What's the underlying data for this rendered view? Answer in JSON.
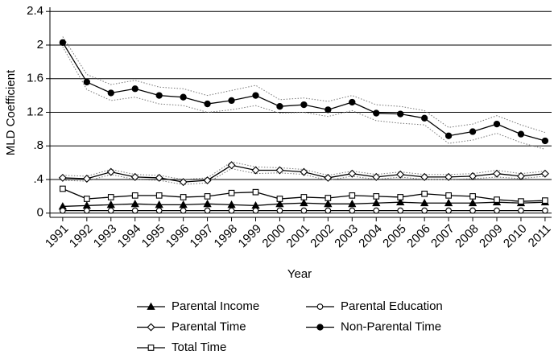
{
  "chart_data": {
    "type": "line",
    "y_label": "MLD Coefficient",
    "x_label": "Year",
    "x": [
      1991,
      1992,
      1993,
      1994,
      1995,
      1996,
      1997,
      1998,
      1999,
      2000,
      2001,
      2002,
      2003,
      2004,
      2005,
      2006,
      2007,
      2008,
      2009,
      2010,
      2011
    ],
    "xlim": [
      1990.47,
      2011.27
    ],
    "xticks": [
      1991,
      1992,
      1993,
      1994,
      1995,
      1996,
      1997,
      1998,
      1999,
      2000,
      2001,
      2002,
      2003,
      2004,
      2005,
      2006,
      2007,
      2008,
      2009,
      2010,
      2011
    ],
    "ylim": [
      -0.05,
      2.45
    ],
    "yticks": [
      0,
      {
        "value": 0.4,
        "label": ".4"
      },
      {
        "value": 0.8,
        "label": ".8"
      },
      1.2,
      1.6,
      2,
      2.4
    ],
    "grid": true,
    "legend": "bottom",
    "series": [
      {
        "name": "Parental Income",
        "color": "#000000",
        "marker": "triangle",
        "values": [
          0.08,
          0.09,
          0.1,
          0.11,
          0.1,
          0.1,
          0.11,
          0.1,
          0.09,
          0.11,
          0.12,
          0.11,
          0.11,
          0.12,
          0.13,
          0.12,
          0.12,
          0.12,
          0.13,
          0.12,
          0.13
        ]
      },
      {
        "name": "Parental Education",
        "color": "#000000",
        "marker": "circle-open",
        "values": [
          0.03,
          0.03,
          0.03,
          0.03,
          0.03,
          0.03,
          0.03,
          0.03,
          0.03,
          0.03,
          0.03,
          0.03,
          0.03,
          0.03,
          0.03,
          0.03,
          0.03,
          0.03,
          0.03,
          0.03,
          0.03
        ]
      },
      {
        "name": "Parental Time",
        "color": "#000000",
        "marker": "diamond",
        "values": [
          0.42,
          0.41,
          0.49,
          0.43,
          0.42,
          0.37,
          0.39,
          0.57,
          0.51,
          0.51,
          0.49,
          0.42,
          0.47,
          0.43,
          0.46,
          0.43,
          0.43,
          0.44,
          0.47,
          0.44,
          0.47
        ],
        "upper": [
          0.45,
          0.44,
          0.52,
          0.46,
          0.45,
          0.4,
          0.42,
          0.61,
          0.55,
          0.54,
          0.52,
          0.45,
          0.5,
          0.46,
          0.49,
          0.46,
          0.46,
          0.47,
          0.51,
          0.47,
          0.5
        ],
        "lower": [
          0.39,
          0.38,
          0.46,
          0.4,
          0.39,
          0.34,
          0.36,
          0.53,
          0.47,
          0.48,
          0.46,
          0.39,
          0.44,
          0.4,
          0.43,
          0.4,
          0.4,
          0.41,
          0.43,
          0.41,
          0.44
        ]
      },
      {
        "name": "Non-Parental Time",
        "color": "#000000",
        "marker": "circle-filled",
        "values": [
          2.03,
          1.56,
          1.43,
          1.48,
          1.4,
          1.38,
          1.3,
          1.34,
          1.4,
          1.27,
          1.29,
          1.23,
          1.32,
          1.19,
          1.18,
          1.13,
          0.92,
          0.97,
          1.06,
          0.94,
          0.86
        ],
        "upper": [
          2.1,
          1.65,
          1.53,
          1.58,
          1.5,
          1.48,
          1.4,
          1.46,
          1.52,
          1.35,
          1.37,
          1.33,
          1.4,
          1.29,
          1.27,
          1.22,
          1.02,
          1.06,
          1.16,
          1.05,
          0.96
        ],
        "lower": [
          1.98,
          1.47,
          1.34,
          1.38,
          1.3,
          1.28,
          1.2,
          1.23,
          1.28,
          1.19,
          1.2,
          1.15,
          1.22,
          1.1,
          1.07,
          1.05,
          0.83,
          0.87,
          0.95,
          0.84,
          0.76
        ]
      },
      {
        "name": "Total Time",
        "color": "#000000",
        "marker": "square",
        "values": [
          0.29,
          0.17,
          0.19,
          0.21,
          0.21,
          0.19,
          0.2,
          0.24,
          0.25,
          0.17,
          0.19,
          0.18,
          0.21,
          0.2,
          0.19,
          0.23,
          0.21,
          0.2,
          0.16,
          0.14,
          0.15
        ]
      }
    ]
  }
}
